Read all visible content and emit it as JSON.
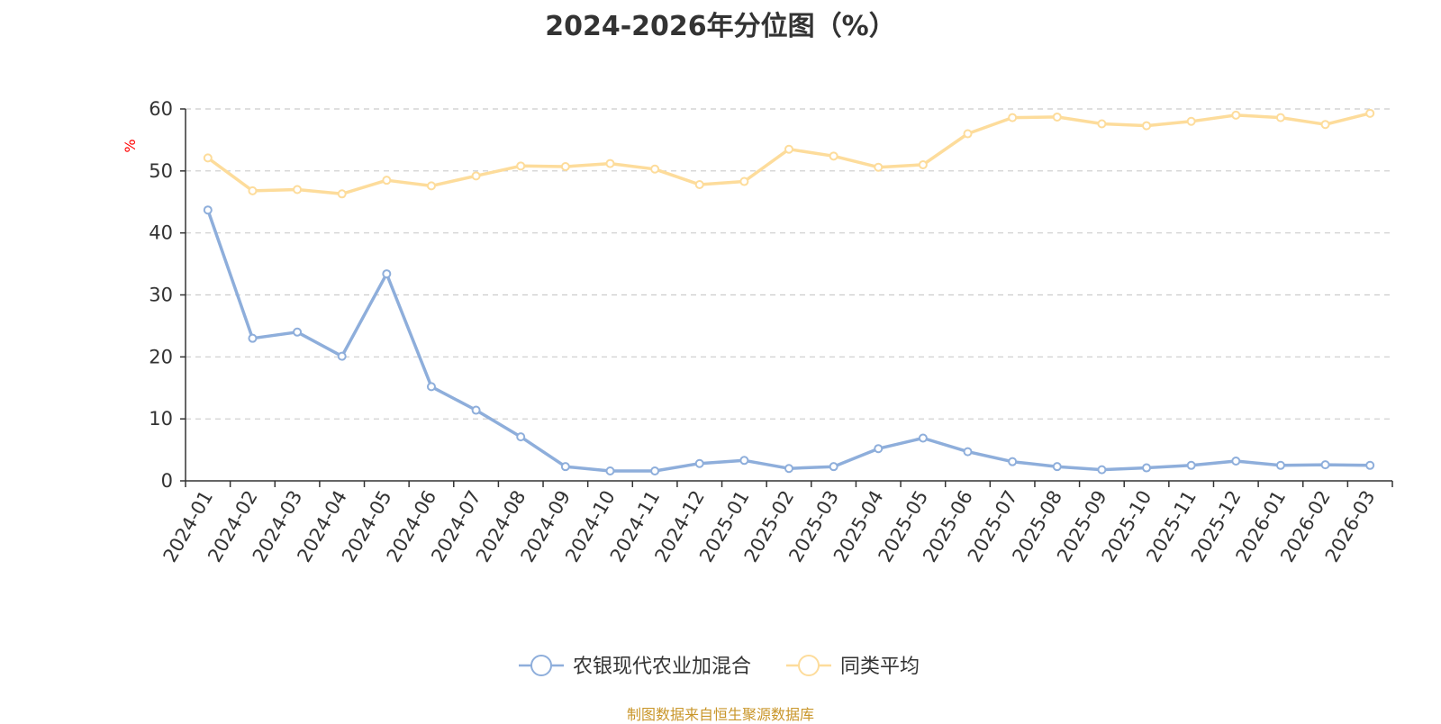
{
  "chart_data": {
    "type": "line",
    "title": "2024-2026年分位图（%）",
    "ylabel": "%",
    "xlabel": "",
    "ylim": [
      0,
      60
    ],
    "yticks": [
      0,
      10,
      20,
      30,
      40,
      50,
      60
    ],
    "grid": true,
    "legend_position": "bottom",
    "categories": [
      "2024-01",
      "2024-02",
      "2024-03",
      "2024-04",
      "2024-05",
      "2024-06",
      "2024-07",
      "2024-08",
      "2024-09",
      "2024-10",
      "2024-11",
      "2024-12",
      "2025-01",
      "2025-02",
      "2025-03",
      "2025-04",
      "2025-05",
      "2025-06",
      "2025-07",
      "2025-08",
      "2025-09",
      "2025-10",
      "2025-11",
      "2025-12",
      "2026-01",
      "2026-02",
      "2026-03"
    ],
    "series": [
      {
        "name": "农银现代农业加混合",
        "color": "#8eaedb",
        "values": [
          43.7,
          23.0,
          24.0,
          20.1,
          33.4,
          15.2,
          11.4,
          7.1,
          2.3,
          1.6,
          1.6,
          2.8,
          3.3,
          2.0,
          2.3,
          5.2,
          6.9,
          4.7,
          3.1,
          2.3,
          1.8,
          2.1,
          2.5,
          3.2,
          2.5,
          2.6,
          2.5
        ]
      },
      {
        "name": "同类平均",
        "color": "#fddc9b",
        "values": [
          52.1,
          46.8,
          47.0,
          46.3,
          48.5,
          47.6,
          49.2,
          50.8,
          50.7,
          51.2,
          50.3,
          47.8,
          48.3,
          53.5,
          52.4,
          50.6,
          51.0,
          56.0,
          58.6,
          58.7,
          57.6,
          57.3,
          58.0,
          59.0,
          58.6,
          57.5,
          59.3
        ]
      }
    ]
  },
  "footer": {
    "source": "制图数据来自恒生聚源数据库"
  }
}
